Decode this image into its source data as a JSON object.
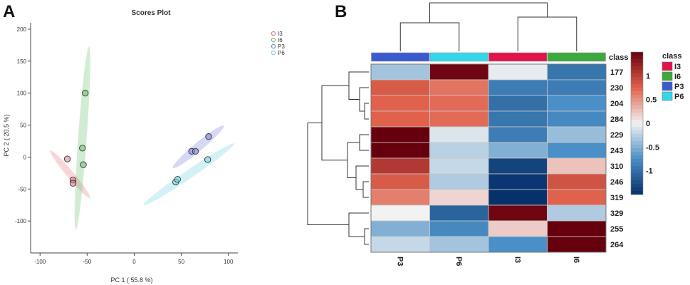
{
  "panels": [
    {
      "letter": "A"
    },
    {
      "letter": "B"
    }
  ],
  "chart_data": [
    {
      "type": "scatter",
      "title": "Scores Plot",
      "xlabel": "PC 1 ( 55.8 %)",
      "ylabel": "PC 2 ( 20.5 %)",
      "xlim": [
        -110,
        110
      ],
      "ylim": [
        -150,
        210
      ],
      "xticks": [
        -100,
        -50,
        0,
        50,
        100
      ],
      "yticks": [
        -100,
        -50,
        0,
        50,
        100,
        150,
        200
      ],
      "grid": false,
      "legend_position": "top-right",
      "series": [
        {
          "name": "I3",
          "color": "#e67386",
          "points": [
            [
              -71,
              -3
            ],
            [
              -65,
              -36
            ],
            [
              -65,
              -41
            ]
          ],
          "ellipse": {
            "center": [
              -68,
              -27
            ],
            "major_axis_end": [
              -89,
              10
            ],
            "minor_radius": 5
          }
        },
        {
          "name": "I6",
          "color": "#6abf6d",
          "points": [
            [
              -52,
              100
            ],
            [
              -55,
              14
            ],
            [
              -54,
              -12
            ]
          ],
          "ellipse": {
            "center": [
              -55,
              30
            ],
            "major_axis_end": [
              -48,
              173
            ],
            "minor_radius": 6
          }
        },
        {
          "name": "P3",
          "color": "#7a7fd6",
          "points": [
            [
              61,
              9
            ],
            [
              65,
              9
            ],
            [
              79,
              32
            ]
          ],
          "ellipse": {
            "center": [
              68,
              16
            ],
            "major_axis_end": [
              95,
              49
            ],
            "minor_radius": 6
          }
        },
        {
          "name": "P6",
          "color": "#6fd3e0",
          "points": [
            [
              44,
              -39
            ],
            [
              46,
              -35
            ],
            [
              78,
              -4
            ]
          ],
          "ellipse": {
            "center": [
              58,
              -27
            ],
            "major_axis_end": [
              10,
              -75
            ],
            "minor_radius": 6
          }
        }
      ]
    },
    {
      "type": "heatmap",
      "columns": [
        "P3",
        "P6",
        "I3",
        "I6"
      ],
      "column_classes": [
        "P3",
        "P6",
        "I3",
        "I6"
      ],
      "rows": [
        "177",
        "230",
        "204",
        "284",
        "229",
        "243",
        "310",
        "246",
        "319",
        "329",
        "255",
        "264"
      ],
      "values": [
        [
          -0.35,
          1.45,
          -0.05,
          -0.95
        ],
        [
          0.8,
          0.65,
          -0.9,
          -0.9
        ],
        [
          0.75,
          0.7,
          -1.0,
          -0.75
        ],
        [
          0.75,
          0.7,
          -0.95,
          -0.8
        ],
        [
          1.5,
          -0.1,
          -0.9,
          -0.4
        ],
        [
          1.55,
          -0.25,
          -0.5,
          -0.75
        ],
        [
          1.05,
          -0.2,
          -1.35,
          0.25
        ],
        [
          0.8,
          -0.3,
          -1.45,
          0.85
        ],
        [
          0.6,
          0.15,
          -1.7,
          0.75
        ],
        [
          0.0,
          -1.1,
          1.45,
          -0.3
        ],
        [
          -0.5,
          -0.8,
          0.2,
          1.5
        ],
        [
          -0.2,
          -0.35,
          -0.75,
          1.55
        ]
      ],
      "class_label": "class",
      "legend_title": "class",
      "class_legend": [
        {
          "name": "I3",
          "color": "#e0144a"
        },
        {
          "name": "I6",
          "color": "#3aaa3c"
        },
        {
          "name": "P3",
          "color": "#3a5bd0"
        },
        {
          "name": "P6",
          "color": "#34d6ea"
        }
      ],
      "colorbar": {
        "range": [
          -1.5,
          1.5
        ],
        "ticks": [
          1,
          0.5,
          0,
          -0.5,
          -1
        ],
        "tick_labels": [
          "1",
          "0.5",
          "0",
          "-0.5",
          "-1"
        ],
        "colors": {
          "low": "#08306b",
          "mid": "#f2f2f2",
          "high": "#67000d"
        }
      },
      "row_dendrogram_order": [
        "177",
        "230",
        "204",
        "284",
        "229",
        "243",
        "310",
        "246",
        "319",
        "329",
        "255",
        "264"
      ],
      "column_dendrogram": [
        [
          "P3",
          "P6"
        ],
        [
          "I3",
          "I6"
        ]
      ]
    }
  ]
}
